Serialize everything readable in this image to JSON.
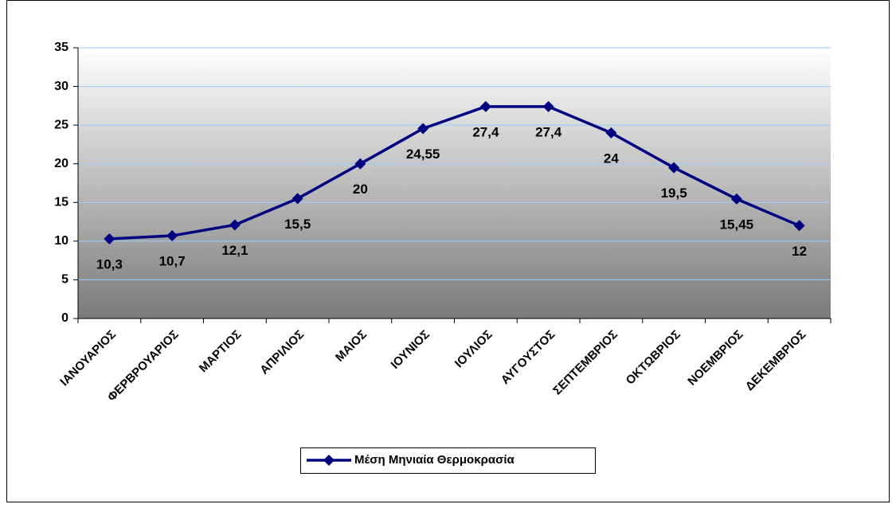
{
  "chart_data": {
    "type": "line",
    "categories": [
      "ΙΑΝΟΥΑΡΙΟΣ",
      "ΦΕΡΒΡΟΥΑΡΙΟΣ",
      "ΜΑΡΤΙΟΣ",
      "ΑΠΡΙΛΙΟΣ",
      "ΜΑΙΟΣ",
      "ΙΟΥΝΙΟΣ",
      "ΙΟΥΛΙΟΣ",
      "ΑΥΓΟΥΣΤΟΣ",
      "ΣΕΠΤΕΜΒΡΙΟΣ",
      "ΟΚΤΩΒΡΙΟΣ",
      "ΝΟΕΜΒΡΙΟΣ",
      "ΔΕΚΕΜΒΡΙΟΣ"
    ],
    "series": [
      {
        "name": "Μέση Μηνιαία Θερμοκρασία",
        "color": "#000080",
        "values": [
          10.3,
          10.7,
          12.1,
          15.5,
          20,
          24.55,
          27.4,
          27.4,
          24,
          19.5,
          15.45,
          12
        ],
        "value_labels": [
          "10,3",
          "10,7",
          "12,1",
          "15,5",
          "20",
          "24,55",
          "27,4",
          "27,4",
          "24",
          "19,5",
          "15,45",
          "12"
        ]
      }
    ],
    "ylim": [
      0,
      35
    ],
    "yticks": [
      0,
      5,
      10,
      15,
      20,
      25,
      30,
      35
    ],
    "grid": true,
    "legend": "bottom"
  }
}
